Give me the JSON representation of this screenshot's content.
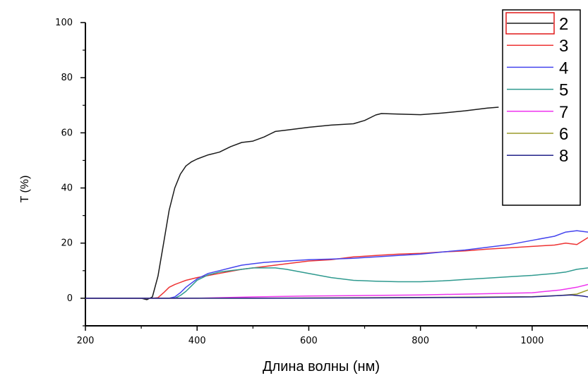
{
  "chart_data": {
    "type": "line",
    "xlabel": "Длина волны (нм)",
    "ylabel": "T (%)",
    "xlim": [
      200,
      1100
    ],
    "ylim": [
      -10,
      100
    ],
    "xticks": [
      200,
      400,
      600,
      800,
      1000
    ],
    "yticks": [
      0,
      20,
      40,
      60,
      80,
      100
    ],
    "grid": false,
    "legend_position": "top-right",
    "series": [
      {
        "name": "2",
        "color": "#1a1a1a",
        "x": [
          200,
          300,
          310,
          320,
          330,
          340,
          350,
          360,
          370,
          380,
          390,
          400,
          420,
          440,
          460,
          480,
          500,
          520,
          540,
          560,
          580,
          600,
          640,
          680,
          700,
          720,
          730,
          760,
          800,
          840,
          880,
          920,
          940
        ],
        "y": [
          0,
          0,
          -0.5,
          0.5,
          8,
          20,
          32,
          40,
          45,
          48,
          49.5,
          50.5,
          52,
          53,
          55,
          56.5,
          57,
          58.5,
          60.5,
          61,
          61.5,
          62,
          62.8,
          63.3,
          64.5,
          66.5,
          67,
          66.8,
          66.6,
          67.2,
          68,
          69,
          69.3
        ]
      },
      {
        "name": "3",
        "color": "#ee3333",
        "x": [
          200,
          320,
          330,
          340,
          350,
          360,
          380,
          400,
          440,
          480,
          520,
          560,
          600,
          640,
          680,
          720,
          760,
          800,
          840,
          880,
          920,
          960,
          1000,
          1040,
          1060,
          1080,
          1100
        ],
        "y": [
          0,
          0,
          0.2,
          2,
          4,
          5,
          6.5,
          7.5,
          9,
          10.5,
          11.5,
          12.5,
          13.5,
          14,
          15,
          15.5,
          16,
          16.3,
          16.8,
          17.2,
          17.8,
          18.3,
          18.8,
          19.3,
          20,
          19.5,
          22
        ]
      },
      {
        "name": "4",
        "color": "#4444ee",
        "x": [
          200,
          350,
          360,
          370,
          380,
          400,
          420,
          440,
          460,
          480,
          500,
          520,
          560,
          600,
          640,
          680,
          720,
          760,
          800,
          840,
          880,
          920,
          960,
          1000,
          1040,
          1060,
          1080,
          1100
        ],
        "y": [
          0,
          0,
          0.5,
          2,
          4,
          7,
          9,
          10,
          11,
          12,
          12.5,
          13,
          13.5,
          14,
          14.2,
          14.5,
          15,
          15.5,
          16,
          16.8,
          17.5,
          18.5,
          19.5,
          21,
          22.5,
          24,
          24.5,
          24
        ]
      },
      {
        "name": "5",
        "color": "#2f9a8f",
        "x": [
          200,
          360,
          370,
          380,
          390,
          400,
          420,
          440,
          460,
          480,
          500,
          520,
          540,
          560,
          600,
          640,
          680,
          720,
          760,
          800,
          840,
          880,
          920,
          960,
          1000,
          1040,
          1060,
          1080,
          1100
        ],
        "y": [
          0,
          0,
          1,
          2.5,
          4.5,
          6.5,
          8.5,
          9.5,
          10,
          10.5,
          11,
          11,
          11,
          10.5,
          9,
          7.5,
          6.5,
          6.2,
          6,
          6,
          6.3,
          6.8,
          7.3,
          7.8,
          8.3,
          9,
          9.5,
          10.5,
          11
        ]
      },
      {
        "name": "7",
        "color": "#ee33ee",
        "x": [
          200,
          400,
          500,
          600,
          700,
          800,
          900,
          1000,
          1050,
          1080,
          1100
        ],
        "y": [
          0,
          0,
          0.5,
          0.8,
          1,
          1.2,
          1.6,
          2,
          3,
          4,
          5
        ]
      },
      {
        "name": "6",
        "color": "#9a9a2a",
        "x": [
          200,
          500,
          700,
          900,
          1000,
          1050,
          1080,
          1100
        ],
        "y": [
          0,
          0,
          0.2,
          0.4,
          0.6,
          1,
          1.5,
          3
        ]
      },
      {
        "name": "8",
        "color": "#23238a",
        "x": [
          200,
          500,
          700,
          900,
          1000,
          1050,
          1070,
          1090,
          1100
        ],
        "y": [
          0,
          0,
          0.1,
          0.3,
          0.5,
          1,
          1.2,
          0.8,
          0.5
        ]
      }
    ]
  }
}
